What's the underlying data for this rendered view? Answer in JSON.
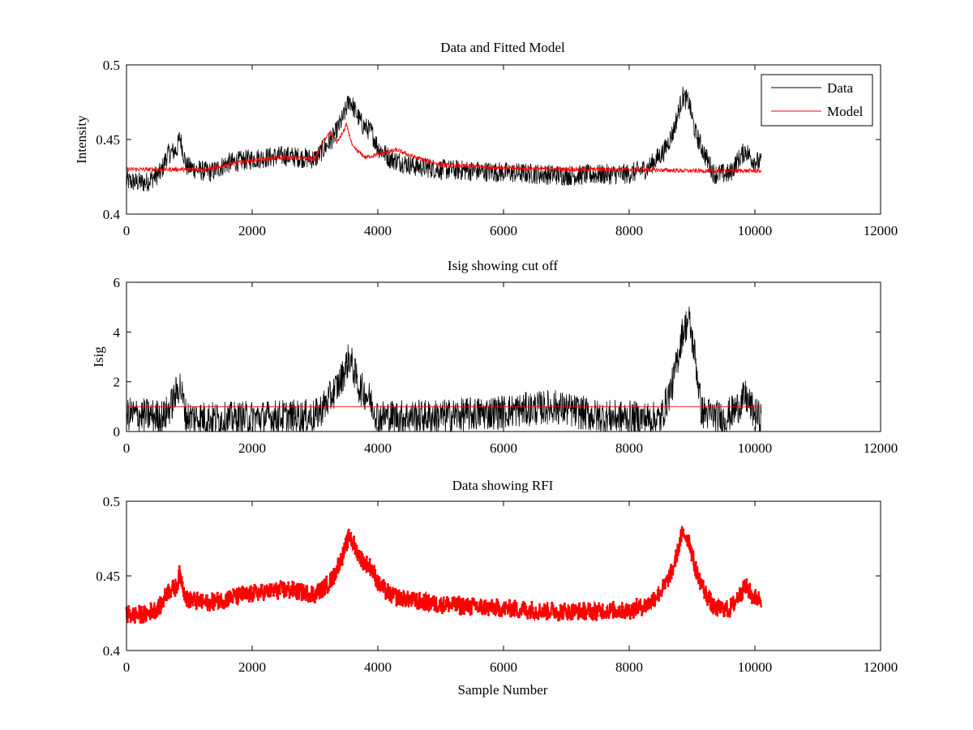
{
  "figure": {
    "background": "#ffffff"
  },
  "chart_data": [
    {
      "type": "line",
      "title": "Data and Fitted Model",
      "xlabel": "",
      "ylabel": "Intensity",
      "xlim": [
        0,
        12000
      ],
      "ylim": [
        0.4,
        0.5
      ],
      "xticks": [
        "0",
        "2000",
        "4000",
        "6000",
        "8000",
        "10000",
        "12000"
      ],
      "yticks": [
        "0.4",
        "0.45",
        "0.5"
      ],
      "legend": {
        "position": "top-right",
        "entries": [
          "Data",
          "Model"
        ]
      },
      "grid": false,
      "series": [
        {
          "name": "Data",
          "color": "#000000",
          "style": "line",
          "noise": 0.007,
          "points": [
            [
              0,
              0.422
            ],
            [
              300,
              0.421
            ],
            [
              550,
              0.428
            ],
            [
              650,
              0.44
            ],
            [
              800,
              0.443
            ],
            [
              850,
              0.452
            ],
            [
              950,
              0.432
            ],
            [
              1200,
              0.429
            ],
            [
              1350,
              0.428
            ],
            [
              1600,
              0.434
            ],
            [
              2000,
              0.437
            ],
            [
              2500,
              0.439
            ],
            [
              3000,
              0.437
            ],
            [
              3150,
              0.444
            ],
            [
              3300,
              0.452
            ],
            [
              3450,
              0.465
            ],
            [
              3550,
              0.477
            ],
            [
              3650,
              0.468
            ],
            [
              3750,
              0.46
            ],
            [
              3900,
              0.455
            ],
            [
              4000,
              0.445
            ],
            [
              4200,
              0.437
            ],
            [
              4600,
              0.432
            ],
            [
              5000,
              0.43
            ],
            [
              6000,
              0.428
            ],
            [
              7000,
              0.426
            ],
            [
              8000,
              0.427
            ],
            [
              8300,
              0.431
            ],
            [
              8550,
              0.442
            ],
            [
              8700,
              0.455
            ],
            [
              8850,
              0.479
            ],
            [
              8950,
              0.475
            ],
            [
              9050,
              0.455
            ],
            [
              9200,
              0.44
            ],
            [
              9350,
              0.427
            ],
            [
              9600,
              0.427
            ],
            [
              9700,
              0.434
            ],
            [
              9850,
              0.443
            ],
            [
              9950,
              0.437
            ],
            [
              10100,
              0.434
            ]
          ]
        },
        {
          "name": "Model",
          "color": "#ff0000",
          "style": "line",
          "noise": 0.0015,
          "points": [
            [
              0,
              0.43
            ],
            [
              1000,
              0.43
            ],
            [
              1300,
              0.43
            ],
            [
              1600,
              0.433
            ],
            [
              2000,
              0.436
            ],
            [
              2500,
              0.438
            ],
            [
              3000,
              0.437
            ],
            [
              3150,
              0.45
            ],
            [
              3250,
              0.455
            ],
            [
              3350,
              0.448
            ],
            [
              3450,
              0.455
            ],
            [
              3500,
              0.46
            ],
            [
              3600,
              0.445
            ],
            [
              3800,
              0.438
            ],
            [
              4000,
              0.44
            ],
            [
              4300,
              0.443
            ],
            [
              4600,
              0.438
            ],
            [
              5000,
              0.433
            ],
            [
              6000,
              0.431
            ],
            [
              7000,
              0.43
            ],
            [
              8000,
              0.43
            ],
            [
              9000,
              0.429
            ],
            [
              10100,
              0.429
            ]
          ]
        }
      ]
    },
    {
      "type": "line",
      "title": "Isig showing cut off",
      "xlabel": "",
      "ylabel": "Isig",
      "xlim": [
        0,
        12000
      ],
      "ylim": [
        0,
        6
      ],
      "xticks": [
        "0",
        "2000",
        "4000",
        "6000",
        "8000",
        "10000",
        "12000"
      ],
      "yticks": [
        "0",
        "2",
        "4",
        "6"
      ],
      "grid": false,
      "series": [
        {
          "name": "",
          "color": "#000000",
          "style": "line",
          "noise": 0.7,
          "points": [
            [
              0,
              0.7
            ],
            [
              600,
              0.6
            ],
            [
              700,
              1.0
            ],
            [
              850,
              1.9
            ],
            [
              950,
              0.6
            ],
            [
              1500,
              0.5
            ],
            [
              2500,
              0.6
            ],
            [
              3000,
              0.6
            ],
            [
              3200,
              1.2
            ],
            [
              3400,
              2.0
            ],
            [
              3550,
              3.0
            ],
            [
              3700,
              1.8
            ],
            [
              3850,
              1.4
            ],
            [
              4000,
              0.6
            ],
            [
              5000,
              0.6
            ],
            [
              6000,
              0.8
            ],
            [
              6800,
              1.0
            ],
            [
              7500,
              0.6
            ],
            [
              8500,
              0.5
            ],
            [
              8700,
              2.0
            ],
            [
              8850,
              4.0
            ],
            [
              8950,
              4.5
            ],
            [
              9050,
              3.0
            ],
            [
              9150,
              0.8
            ],
            [
              9500,
              0.5
            ],
            [
              9700,
              0.9
            ],
            [
              9850,
              1.4
            ],
            [
              10000,
              0.7
            ],
            [
              10100,
              0.5
            ]
          ]
        },
        {
          "name": "",
          "color": "#ff0000",
          "style": "line",
          "noise": 0,
          "points": [
            [
              0,
              1
            ],
            [
              10100,
              1
            ]
          ]
        }
      ]
    },
    {
      "type": "scatter",
      "title": "Data showing RFI",
      "xlabel": "Sample Number",
      "ylabel": "",
      "xlim": [
        0,
        12000
      ],
      "ylim": [
        0.4,
        0.5
      ],
      "xticks": [
        "0",
        "2000",
        "4000",
        "6000",
        "8000",
        "10000",
        "12000"
      ],
      "yticks": [
        "0.4",
        "0.45",
        "0.5"
      ],
      "grid": false,
      "series": [
        {
          "name": "",
          "color": "#ff0000",
          "style": "marker-line",
          "noise": 0.006,
          "points": [
            [
              0,
              0.424
            ],
            [
              300,
              0.424
            ],
            [
              550,
              0.43
            ],
            [
              650,
              0.44
            ],
            [
              800,
              0.443
            ],
            [
              850,
              0.452
            ],
            [
              950,
              0.435
            ],
            [
              1200,
              0.432
            ],
            [
              1350,
              0.432
            ],
            [
              1600,
              0.435
            ],
            [
              2000,
              0.438
            ],
            [
              2500,
              0.441
            ],
            [
              3000,
              0.438
            ],
            [
              3150,
              0.442
            ],
            [
              3300,
              0.45
            ],
            [
              3450,
              0.465
            ],
            [
              3550,
              0.477
            ],
            [
              3650,
              0.468
            ],
            [
              3750,
              0.46
            ],
            [
              3900,
              0.455
            ],
            [
              4000,
              0.445
            ],
            [
              4200,
              0.437
            ],
            [
              4600,
              0.433
            ],
            [
              5000,
              0.431
            ],
            [
              6000,
              0.428
            ],
            [
              7000,
              0.426
            ],
            [
              8000,
              0.427
            ],
            [
              8300,
              0.431
            ],
            [
              8550,
              0.442
            ],
            [
              8700,
              0.455
            ],
            [
              8850,
              0.479
            ],
            [
              8950,
              0.475
            ],
            [
              9050,
              0.455
            ],
            [
              9200,
              0.44
            ],
            [
              9350,
              0.428
            ],
            [
              9600,
              0.428
            ],
            [
              9700,
              0.434
            ],
            [
              9850,
              0.443
            ],
            [
              9950,
              0.437
            ],
            [
              10100,
              0.434
            ]
          ]
        }
      ]
    }
  ]
}
